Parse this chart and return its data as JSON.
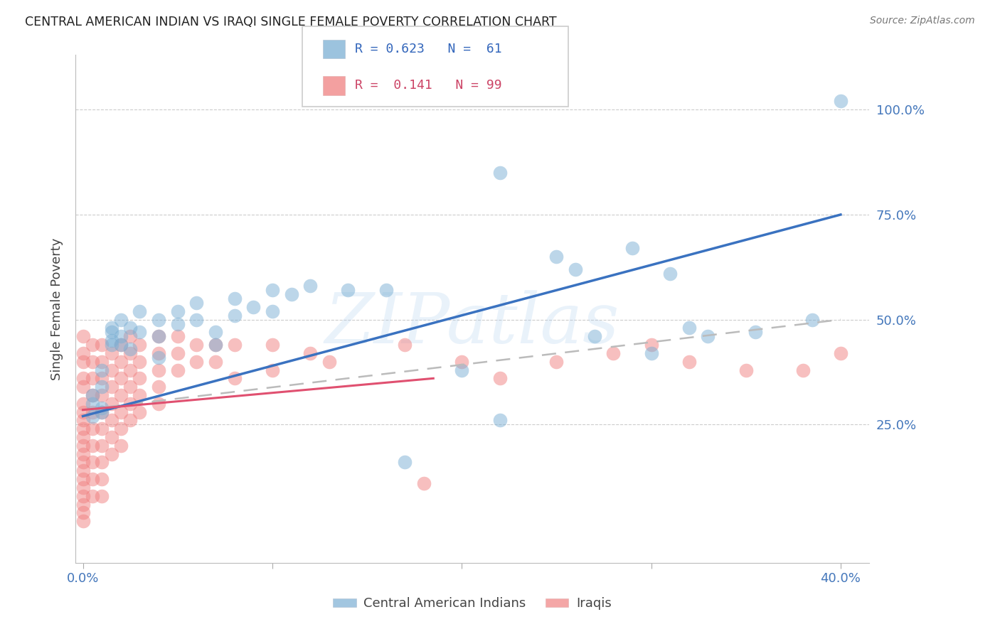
{
  "title": "CENTRAL AMERICAN INDIAN VS IRAQI SINGLE FEMALE POVERTY CORRELATION CHART",
  "source": "Source: ZipAtlas.com",
  "ylabel": "Single Female Poverty",
  "watermark": "ZIPatlas",
  "color_blue": "#7BAFD4",
  "color_pink": "#F08080",
  "color_blue_line": "#3A72C0",
  "color_pink_line": "#E05070",
  "color_pink_dashed": "#BBBBBB",
  "color_ticks": "#4477BB",
  "background_color": "#FFFFFF",
  "blue_points": [
    [
      0.005,
      0.27
    ],
    [
      0.005,
      0.32
    ],
    [
      0.005,
      0.3
    ],
    [
      0.01,
      0.29
    ],
    [
      0.01,
      0.34
    ],
    [
      0.01,
      0.28
    ],
    [
      0.01,
      0.38
    ],
    [
      0.015,
      0.45
    ],
    [
      0.015,
      0.48
    ],
    [
      0.015,
      0.44
    ],
    [
      0.015,
      0.47
    ],
    [
      0.02,
      0.46
    ],
    [
      0.02,
      0.44
    ],
    [
      0.02,
      0.5
    ],
    [
      0.025,
      0.48
    ],
    [
      0.025,
      0.43
    ],
    [
      0.03,
      0.52
    ],
    [
      0.03,
      0.47
    ],
    [
      0.04,
      0.5
    ],
    [
      0.04,
      0.46
    ],
    [
      0.04,
      0.41
    ],
    [
      0.05,
      0.52
    ],
    [
      0.05,
      0.49
    ],
    [
      0.06,
      0.54
    ],
    [
      0.06,
      0.5
    ],
    [
      0.07,
      0.47
    ],
    [
      0.07,
      0.44
    ],
    [
      0.08,
      0.55
    ],
    [
      0.08,
      0.51
    ],
    [
      0.09,
      0.53
    ],
    [
      0.1,
      0.57
    ],
    [
      0.1,
      0.52
    ],
    [
      0.11,
      0.56
    ],
    [
      0.12,
      0.58
    ],
    [
      0.14,
      0.57
    ],
    [
      0.16,
      0.57
    ],
    [
      0.17,
      0.16
    ],
    [
      0.2,
      0.38
    ],
    [
      0.22,
      0.26
    ],
    [
      0.22,
      0.85
    ],
    [
      0.25,
      0.65
    ],
    [
      0.26,
      0.62
    ],
    [
      0.27,
      0.46
    ],
    [
      0.29,
      0.67
    ],
    [
      0.3,
      0.42
    ],
    [
      0.31,
      0.61
    ],
    [
      0.32,
      0.48
    ],
    [
      0.33,
      0.46
    ],
    [
      0.355,
      0.47
    ],
    [
      0.385,
      0.5
    ],
    [
      0.4,
      1.02
    ]
  ],
  "pink_points": [
    [
      0.0,
      0.3
    ],
    [
      0.0,
      0.28
    ],
    [
      0.0,
      0.26
    ],
    [
      0.0,
      0.24
    ],
    [
      0.0,
      0.22
    ],
    [
      0.0,
      0.2
    ],
    [
      0.0,
      0.18
    ],
    [
      0.0,
      0.16
    ],
    [
      0.0,
      0.14
    ],
    [
      0.0,
      0.12
    ],
    [
      0.0,
      0.1
    ],
    [
      0.0,
      0.08
    ],
    [
      0.0,
      0.06
    ],
    [
      0.0,
      0.04
    ],
    [
      0.0,
      0.02
    ],
    [
      0.0,
      0.34
    ],
    [
      0.0,
      0.36
    ],
    [
      0.0,
      0.4
    ],
    [
      0.0,
      0.42
    ],
    [
      0.0,
      0.46
    ],
    [
      0.005,
      0.44
    ],
    [
      0.005,
      0.4
    ],
    [
      0.005,
      0.36
    ],
    [
      0.005,
      0.32
    ],
    [
      0.005,
      0.28
    ],
    [
      0.005,
      0.24
    ],
    [
      0.005,
      0.2
    ],
    [
      0.005,
      0.16
    ],
    [
      0.005,
      0.12
    ],
    [
      0.005,
      0.08
    ],
    [
      0.01,
      0.44
    ],
    [
      0.01,
      0.4
    ],
    [
      0.01,
      0.36
    ],
    [
      0.01,
      0.32
    ],
    [
      0.01,
      0.28
    ],
    [
      0.01,
      0.24
    ],
    [
      0.01,
      0.2
    ],
    [
      0.01,
      0.16
    ],
    [
      0.01,
      0.12
    ],
    [
      0.01,
      0.08
    ],
    [
      0.015,
      0.42
    ],
    [
      0.015,
      0.38
    ],
    [
      0.015,
      0.34
    ],
    [
      0.015,
      0.3
    ],
    [
      0.015,
      0.26
    ],
    [
      0.015,
      0.22
    ],
    [
      0.015,
      0.18
    ],
    [
      0.02,
      0.44
    ],
    [
      0.02,
      0.4
    ],
    [
      0.02,
      0.36
    ],
    [
      0.02,
      0.32
    ],
    [
      0.02,
      0.28
    ],
    [
      0.02,
      0.24
    ],
    [
      0.02,
      0.2
    ],
    [
      0.025,
      0.46
    ],
    [
      0.025,
      0.42
    ],
    [
      0.025,
      0.38
    ],
    [
      0.025,
      0.34
    ],
    [
      0.025,
      0.3
    ],
    [
      0.025,
      0.26
    ],
    [
      0.03,
      0.44
    ],
    [
      0.03,
      0.4
    ],
    [
      0.03,
      0.36
    ],
    [
      0.03,
      0.32
    ],
    [
      0.03,
      0.28
    ],
    [
      0.04,
      0.46
    ],
    [
      0.04,
      0.42
    ],
    [
      0.04,
      0.38
    ],
    [
      0.04,
      0.34
    ],
    [
      0.04,
      0.3
    ],
    [
      0.05,
      0.46
    ],
    [
      0.05,
      0.42
    ],
    [
      0.05,
      0.38
    ],
    [
      0.06,
      0.44
    ],
    [
      0.06,
      0.4
    ],
    [
      0.07,
      0.44
    ],
    [
      0.07,
      0.4
    ],
    [
      0.08,
      0.44
    ],
    [
      0.08,
      0.36
    ],
    [
      0.1,
      0.44
    ],
    [
      0.1,
      0.38
    ],
    [
      0.12,
      0.42
    ],
    [
      0.13,
      0.4
    ],
    [
      0.17,
      0.44
    ],
    [
      0.18,
      0.11
    ],
    [
      0.2,
      0.4
    ],
    [
      0.22,
      0.36
    ],
    [
      0.25,
      0.4
    ],
    [
      0.28,
      0.42
    ],
    [
      0.3,
      0.44
    ],
    [
      0.32,
      0.4
    ],
    [
      0.35,
      0.38
    ],
    [
      0.38,
      0.38
    ],
    [
      0.4,
      0.42
    ]
  ],
  "blue_line": {
    "x0": 0.0,
    "y0": 0.27,
    "x1": 0.4,
    "y1": 0.75
  },
  "pink_solid_line": {
    "x0": 0.0,
    "y0": 0.285,
    "x1": 0.185,
    "y1": 0.36
  },
  "pink_dashed_line": {
    "x0": 0.0,
    "y0": 0.285,
    "x1": 0.4,
    "y1": 0.5
  },
  "xlim": [
    -0.004,
    0.415
  ],
  "ylim": [
    -0.08,
    1.13
  ]
}
